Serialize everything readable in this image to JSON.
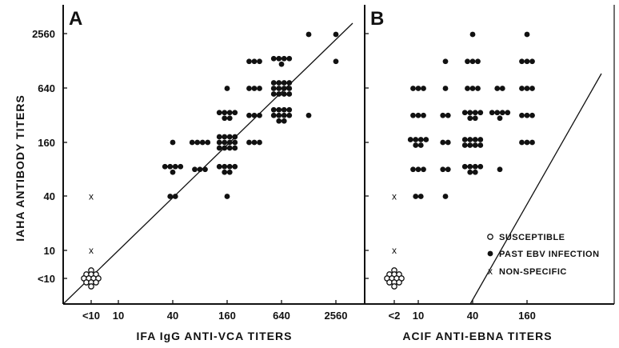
{
  "chart_data": [
    {
      "type": "scatter",
      "panel_label": "A",
      "xlabel": "IFA IgG ANTI-VCA TITERS",
      "ylabel": "IAHA ANTIBODY TITERS",
      "x_ticks": [
        "<10",
        "10",
        "40",
        "160",
        "640",
        "2560"
      ],
      "y_ticks": [
        "<10",
        "10",
        "40",
        "160",
        "640",
        "2560"
      ],
      "reference_line": "x = y",
      "series": [
        {
          "name": "SUSCEPTIBLE",
          "marker": "open-circle",
          "points": [
            {
              "x": "<10",
              "y": "<10",
              "count": 12
            }
          ]
        },
        {
          "name": "PAST EBV INFECTION",
          "marker": "filled-circle",
          "points": [
            {
              "x": 40,
              "y": 160,
              "count": 1
            },
            {
              "x": 40,
              "y": 80,
              "count": 5
            },
            {
              "x": 40,
              "y": 40,
              "count": 2
            },
            {
              "x": 80,
              "y": 80,
              "count": 3
            },
            {
              "x": 80,
              "y": 160,
              "count": 4
            },
            {
              "x": 160,
              "y": 640,
              "count": 1
            },
            {
              "x": 160,
              "y": 320,
              "count": 6
            },
            {
              "x": 160,
              "y": 160,
              "count": 12
            },
            {
              "x": 160,
              "y": 80,
              "count": 6
            },
            {
              "x": 160,
              "y": 40,
              "count": 1
            },
            {
              "x": 320,
              "y": 1280,
              "count": 3
            },
            {
              "x": 320,
              "y": 640,
              "count": 3
            },
            {
              "x": 320,
              "y": 320,
              "count": 3
            },
            {
              "x": 320,
              "y": 160,
              "count": 3
            },
            {
              "x": 640,
              "y": 1280,
              "count": 5
            },
            {
              "x": 640,
              "y": 640,
              "count": 12
            },
            {
              "x": 640,
              "y": 320,
              "count": 10
            },
            {
              "x": 1280,
              "y": 320,
              "count": 1
            },
            {
              "x": 1280,
              "y": 2560,
              "count": 1
            },
            {
              "x": 2560,
              "y": 2560,
              "count": 1
            },
            {
              "x": 2560,
              "y": 1280,
              "count": 1
            }
          ]
        },
        {
          "name": "NON-SPECIFIC",
          "marker": "x",
          "points": [
            {
              "x": "<10",
              "y": 40,
              "count": 1
            },
            {
              "x": "<10",
              "y": 10,
              "count": 1
            }
          ]
        }
      ]
    },
    {
      "type": "scatter",
      "panel_label": "B",
      "xlabel": "ACIF ANTI-EBNA TITERS",
      "ylabel": "IAHA ANTIBODY TITERS",
      "x_ticks": [
        "<2",
        "10",
        "40",
        "160"
      ],
      "y_ticks": [
        "<10",
        "10",
        "40",
        "160",
        "640",
        "2560"
      ],
      "reference_line": "diagonal",
      "series": [
        {
          "name": "SUSCEPTIBLE",
          "marker": "open-circle",
          "points": [
            {
              "x": "<2",
              "y": "<10",
              "count": 12
            }
          ]
        },
        {
          "name": "PAST EBV INFECTION",
          "marker": "filled-circle",
          "points": [
            {
              "x": 10,
              "y": 640,
              "count": 3
            },
            {
              "x": 10,
              "y": 320,
              "count": 3
            },
            {
              "x": 10,
              "y": 160,
              "count": 6
            },
            {
              "x": 10,
              "y": 80,
              "count": 3
            },
            {
              "x": 10,
              "y": 40,
              "count": 2
            },
            {
              "x": 20,
              "y": 320,
              "count": 2
            },
            {
              "x": 20,
              "y": 160,
              "count": 2
            },
            {
              "x": 20,
              "y": 80,
              "count": 2
            },
            {
              "x": 20,
              "y": 640,
              "count": 1
            },
            {
              "x": 20,
              "y": 1280,
              "count": 1
            },
            {
              "x": 20,
              "y": 40,
              "count": 1
            },
            {
              "x": 40,
              "y": 2560,
              "count": 1
            },
            {
              "x": 40,
              "y": 1280,
              "count": 3
            },
            {
              "x": 40,
              "y": 640,
              "count": 3
            },
            {
              "x": 40,
              "y": 320,
              "count": 6
            },
            {
              "x": 40,
              "y": 160,
              "count": 8
            },
            {
              "x": 40,
              "y": 80,
              "count": 6
            },
            {
              "x": 80,
              "y": 640,
              "count": 2
            },
            {
              "x": 80,
              "y": 320,
              "count": 5
            },
            {
              "x": 80,
              "y": 80,
              "count": 1
            },
            {
              "x": 160,
              "y": 2560,
              "count": 1
            },
            {
              "x": 160,
              "y": 1280,
              "count": 3
            },
            {
              "x": 160,
              "y": 640,
              "count": 3
            },
            {
              "x": 160,
              "y": 320,
              "count": 3
            },
            {
              "x": 160,
              "y": 160,
              "count": 3
            }
          ]
        },
        {
          "name": "NON-SPECIFIC",
          "marker": "x",
          "points": [
            {
              "x": "<2",
              "y": 40,
              "count": 1
            },
            {
              "x": "<2",
              "y": 10,
              "count": 1
            }
          ]
        }
      ]
    }
  ],
  "legend": [
    {
      "label": "SUSCEPTIBLE",
      "marker": "open-circle"
    },
    {
      "label": "PAST EBV INFECTION",
      "marker": "filled-circle"
    },
    {
      "label": "NON-SPECIFIC",
      "marker": "x"
    }
  ]
}
